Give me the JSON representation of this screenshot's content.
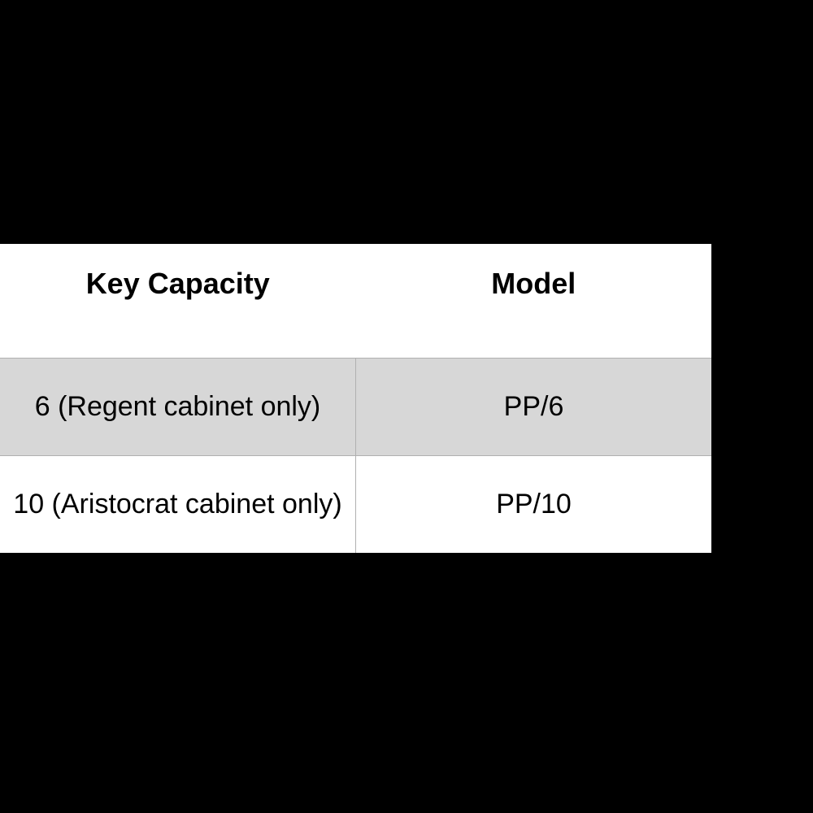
{
  "table": {
    "type": "table",
    "background_color": "#000000",
    "table_bg": "#ffffff",
    "border_color": "#b0b0b0",
    "text_color": "#000000",
    "header_fontsize": 36,
    "cell_fontsize": 34,
    "columns": [
      {
        "label": "Key Capacity",
        "align": "center"
      },
      {
        "label": "Model",
        "align": "center"
      }
    ],
    "rows": [
      {
        "capacity": "6 (Regent cabinet only)",
        "model": "PP/6",
        "bg": "#d7d7d7"
      },
      {
        "capacity": "10 (Aristocrat cabinet only)",
        "model": "PP/10",
        "bg": "#ffffff"
      }
    ]
  }
}
